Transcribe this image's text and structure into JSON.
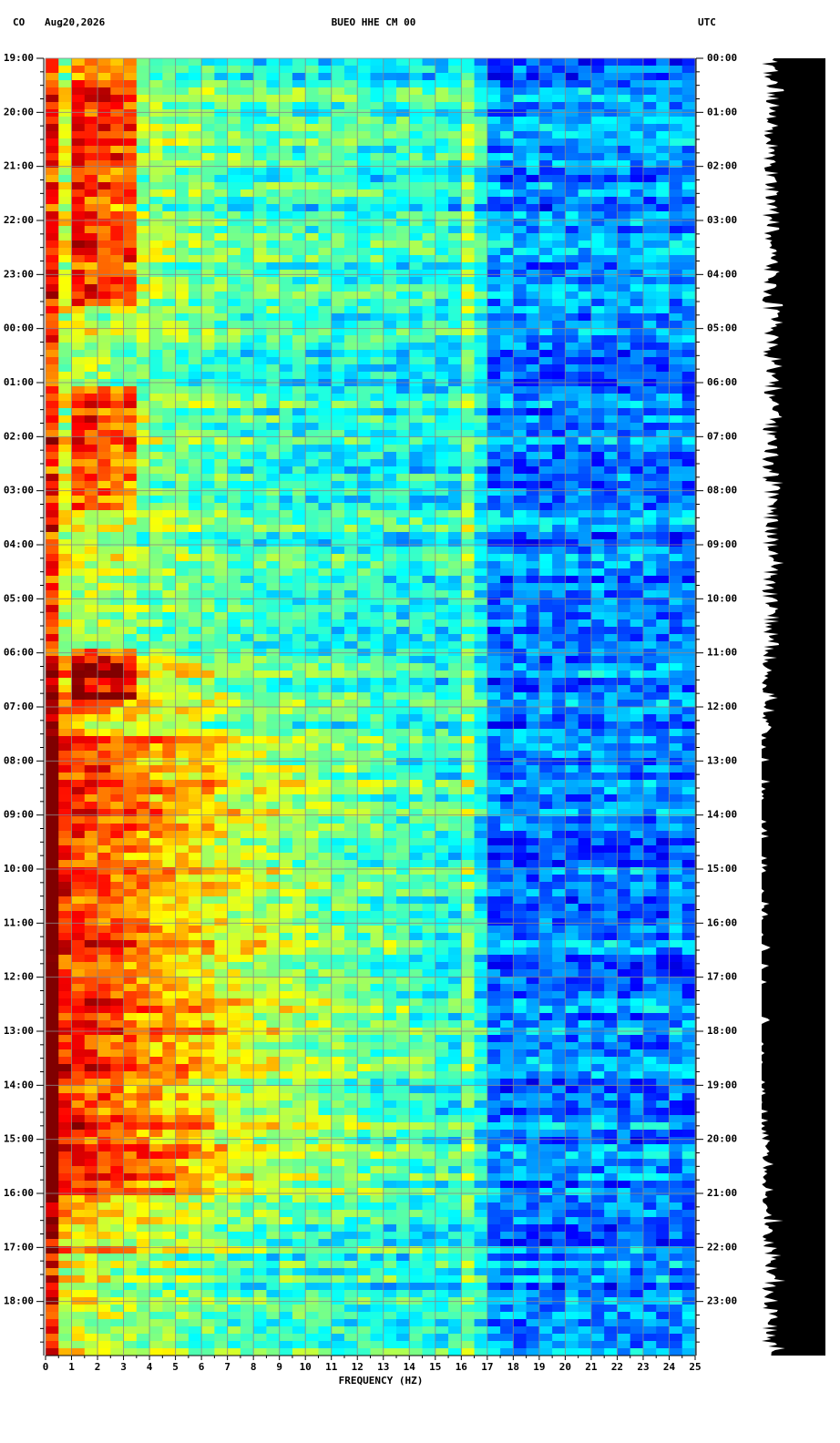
{
  "chart_data": {
    "type": "heatmap",
    "title": "BUEO HHE CM 00",
    "network": "CO",
    "date": "Aug20,2026",
    "timezone": "UTC",
    "xlabel": "FREQUENCY (HZ)",
    "xlim": [
      0,
      25
    ],
    "xticks": [
      0,
      1,
      2,
      3,
      4,
      5,
      6,
      7,
      8,
      9,
      10,
      11,
      12,
      13,
      14,
      15,
      16,
      17,
      18,
      19,
      20,
      21,
      22,
      23,
      24,
      25
    ],
    "ylim": [
      0,
      24
    ],
    "yticks": [
      {
        "value": 0,
        "label": "19:00"
      },
      {
        "value": 1,
        "label": "20:00"
      },
      {
        "value": 2,
        "label": "21:00"
      },
      {
        "value": 3,
        "label": "22:00"
      },
      {
        "value": 4,
        "label": "23:00"
      },
      {
        "value": 5,
        "label": "00:00"
      },
      {
        "value": 6,
        "label": "01:00"
      },
      {
        "value": 7,
        "label": "02:00"
      },
      {
        "value": 8,
        "label": "03:00"
      },
      {
        "value": 9,
        "label": "04:00"
      },
      {
        "value": 10,
        "label": "05:00"
      },
      {
        "value": 11,
        "label": "06:00"
      },
      {
        "value": 12,
        "label": "07:00"
      },
      {
        "value": 13,
        "label": "08:00"
      },
      {
        "value": 14,
        "label": "09:00"
      },
      {
        "value": 15,
        "label": "10:00"
      },
      {
        "value": 16,
        "label": "11:00"
      },
      {
        "value": 17,
        "label": "12:00"
      },
      {
        "value": 18,
        "label": "13:00"
      },
      {
        "value": 19,
        "label": "14:00"
      },
      {
        "value": 20,
        "label": "15:00"
      },
      {
        "value": 21,
        "label": "16:00"
      },
      {
        "value": 22,
        "label": "17:00"
      },
      {
        "value": 23,
        "label": "18:00"
      }
    ],
    "y2lim": [
      0,
      24
    ],
    "y2ticks": [
      {
        "value": 0,
        "label": "00:00"
      },
      {
        "value": 1,
        "label": "01:00"
      },
      {
        "value": 2,
        "label": "02:00"
      },
      {
        "value": 3,
        "label": "03:00"
      },
      {
        "value": 4,
        "label": "04:00"
      },
      {
        "value": 5,
        "label": "05:00"
      },
      {
        "value": 6,
        "label": "06:00"
      },
      {
        "value": 7,
        "label": "07:00"
      },
      {
        "value": 8,
        "label": "08:00"
      },
      {
        "value": 9,
        "label": "09:00"
      },
      {
        "value": 10,
        "label": "10:00"
      },
      {
        "value": 11,
        "label": "11:00"
      },
      {
        "value": 12,
        "label": "12:00"
      },
      {
        "value": 13,
        "label": "13:00"
      },
      {
        "value": 14,
        "label": "14:00"
      },
      {
        "value": 15,
        "label": "15:00"
      },
      {
        "value": 16,
        "label": "16:00"
      },
      {
        "value": 17,
        "label": "17:00"
      },
      {
        "value": 18,
        "label": "18:00"
      },
      {
        "value": 19,
        "label": "19:00"
      },
      {
        "value": 20,
        "label": "20:00"
      },
      {
        "value": 21,
        "label": "21:00"
      },
      {
        "value": 22,
        "label": "22:00"
      },
      {
        "value": 23,
        "label": "23:00"
      }
    ],
    "grid": true
  }
}
